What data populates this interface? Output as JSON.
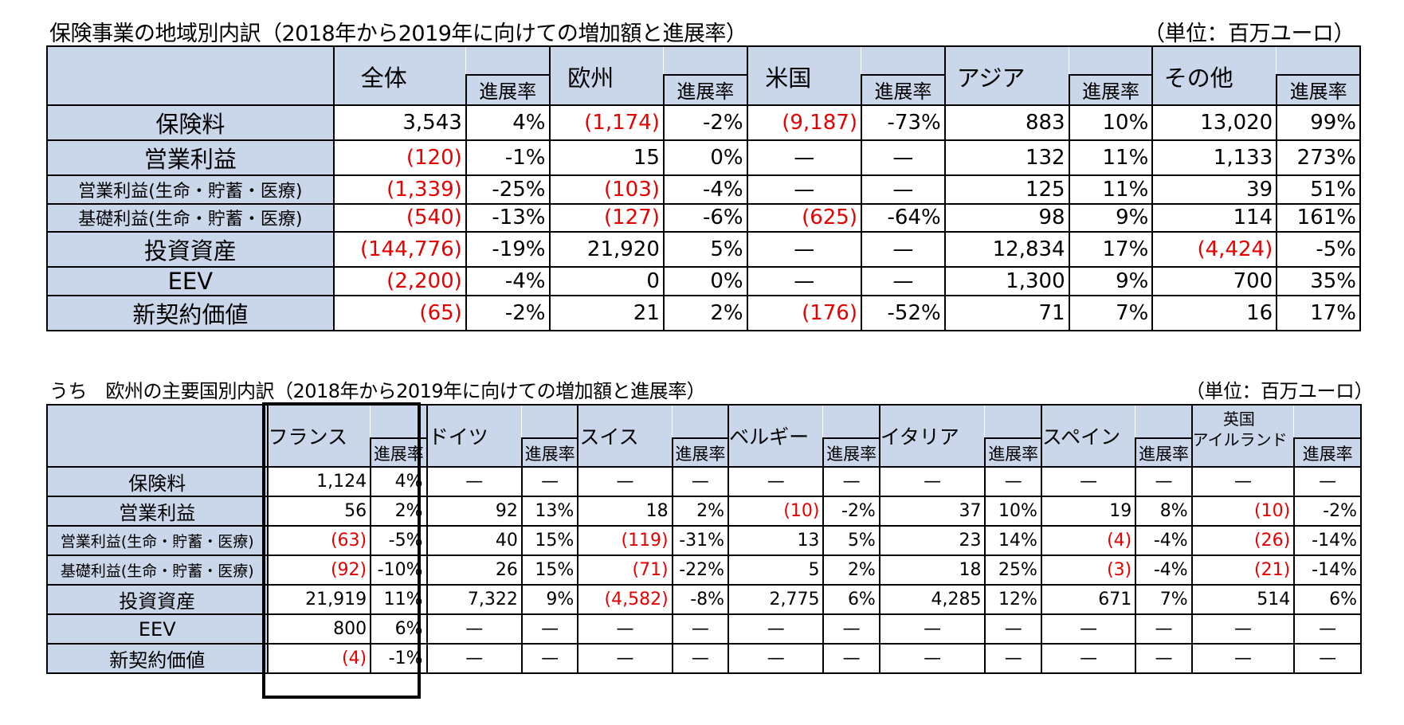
{
  "table1": {
    "title": "保険事業の地域別内訳（2018年から2019年に向けての増加額と進展率）",
    "unit": "（単位：百万ユーロ）",
    "rate_label": "進展率",
    "regions": [
      "全体",
      "欧州",
      "米国",
      "アジア",
      "その他"
    ],
    "rows": [
      {
        "label": "保険料",
        "size": "big",
        "cells": [
          "3,543",
          "4%",
          "(1,174)",
          "-2%",
          "(9,187)",
          "-73%",
          "883",
          "10%",
          "13,020",
          "99%"
        ]
      },
      {
        "label": "営業利益",
        "size": "big",
        "cells": [
          "(120)",
          "-1%",
          "15",
          "0%",
          "—",
          "—",
          "132",
          "11%",
          "1,133",
          "273%"
        ]
      },
      {
        "label": "営業利益(生命・貯蓄・医療)",
        "size": "small",
        "cells": [
          "(1,339)",
          "-25%",
          "(103)",
          "-4%",
          "—",
          "—",
          "125",
          "11%",
          "39",
          "51%"
        ]
      },
      {
        "label": "基礎利益(生命・貯蓄・医療)",
        "size": "small",
        "cells": [
          "(540)",
          "-13%",
          "(127)",
          "-6%",
          "(625)",
          "-64%",
          "98",
          "9%",
          "114",
          "161%"
        ]
      },
      {
        "label": "投資資産",
        "size": "big",
        "cells": [
          "(144,776)",
          "-19%",
          "21,920",
          "5%",
          "—",
          "—",
          "12,834",
          "17%",
          "(4,424)",
          "-5%"
        ]
      },
      {
        "label": "EEV",
        "size": "big",
        "cells": [
          "(2,200)",
          "-4%",
          "0",
          "0%",
          "—",
          "—",
          "1,300",
          "9%",
          "700",
          "35%"
        ]
      },
      {
        "label": "新契約価値",
        "size": "big",
        "cells": [
          "(65)",
          "-2%",
          "21",
          "2%",
          "(176)",
          "-52%",
          "71",
          "7%",
          "16",
          "17%"
        ]
      }
    ]
  },
  "table2": {
    "title": "うち　欧州の主要国別内訳（2018年から2019年に向けての増加額と進展率）",
    "unit": "（単位：百万ユーロ）",
    "rate_label": "進展率",
    "countries": [
      "フランス",
      "ドイツ",
      "スイス",
      "ベルギー",
      "イタリア",
      "スペイン",
      "英国",
      "アイルランド"
    ],
    "rows": [
      {
        "label": "保険料",
        "size": "big",
        "cells": [
          "1,124",
          "4%",
          "—",
          "—",
          "—",
          "—",
          "—",
          "—",
          "—",
          "—",
          "—",
          "—",
          "—",
          "—"
        ]
      },
      {
        "label": "営業利益",
        "size": "big",
        "cells": [
          "56",
          "2%",
          "92",
          "13%",
          "18",
          "2%",
          "(10)",
          "-2%",
          "37",
          "10%",
          "19",
          "8%",
          "(10)",
          "-2%"
        ]
      },
      {
        "label": "営業利益(生命・貯蓄・医療)",
        "size": "small",
        "cells": [
          "(63)",
          "-5%",
          "40",
          "15%",
          "(119)",
          "-31%",
          "13",
          "5%",
          "23",
          "14%",
          "(4)",
          "-4%",
          "(26)",
          "-14%"
        ]
      },
      {
        "label": "基礎利益(生命・貯蓄・医療)",
        "size": "small",
        "cells": [
          "(92)",
          "-10%",
          "26",
          "15%",
          "(71)",
          "-22%",
          "5",
          "2%",
          "18",
          "25%",
          "(3)",
          "-4%",
          "(21)",
          "-14%"
        ]
      },
      {
        "label": "投資資産",
        "size": "big",
        "cells": [
          "21,919",
          "11%",
          "7,322",
          "9%",
          "(4,582)",
          "-8%",
          "2,775",
          "6%",
          "4,285",
          "12%",
          "671",
          "7%",
          "514",
          "6%"
        ]
      },
      {
        "label": "EEV",
        "size": "big",
        "cells": [
          "800",
          "6%",
          "—",
          "—",
          "—",
          "—",
          "—",
          "—",
          "—",
          "—",
          "—",
          "—",
          "—",
          "—"
        ]
      },
      {
        "label": "新契約価値",
        "size": "big",
        "cells": [
          "(4)",
          "-1%",
          "—",
          "—",
          "—",
          "—",
          "—",
          "—",
          "—",
          "—",
          "—",
          "—",
          "—",
          "—"
        ]
      }
    ]
  },
  "colors": {
    "header_fill": "#cad6ea",
    "negative_text": "#e60000"
  }
}
